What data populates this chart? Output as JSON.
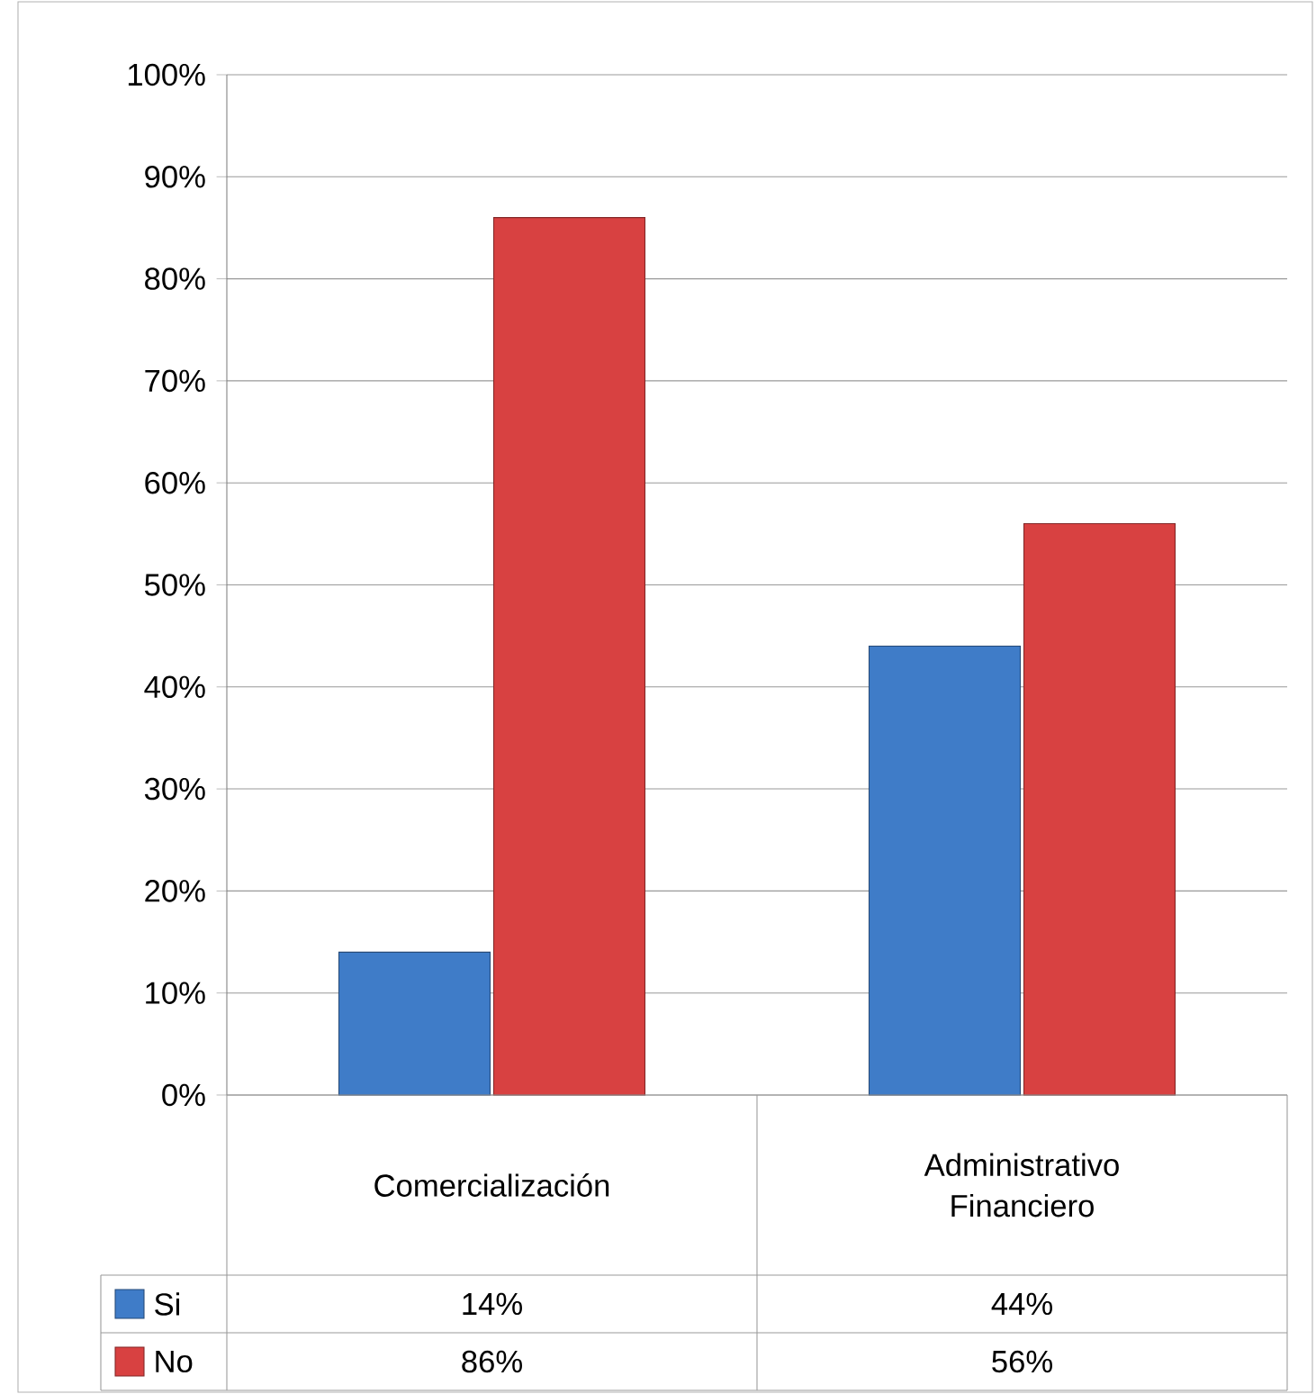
{
  "chart_data": {
    "type": "bar",
    "categories": [
      "Comercialización",
      "Administrativo Financiero"
    ],
    "series": [
      {
        "name": "Si",
        "color": "#3f7cc8",
        "values": [
          14,
          44
        ],
        "value_labels": [
          "14%",
          "44%"
        ]
      },
      {
        "name": "No",
        "color": "#d84141",
        "values": [
          86,
          56
        ],
        "value_labels": [
          "86%",
          "56%"
        ]
      }
    ],
    "ylim": [
      0,
      100
    ],
    "yticks": [
      {
        "value": 0,
        "label": "0%"
      },
      {
        "value": 10,
        "label": "10%"
      },
      {
        "value": 20,
        "label": "20%"
      },
      {
        "value": 30,
        "label": "30%"
      },
      {
        "value": 40,
        "label": "40%"
      },
      {
        "value": 50,
        "label": "50%"
      },
      {
        "value": 60,
        "label": "60%"
      },
      {
        "value": 70,
        "label": "70%"
      },
      {
        "value": 80,
        "label": "80%"
      },
      {
        "value": 90,
        "label": "90%"
      },
      {
        "value": 100,
        "label": "100%"
      }
    ],
    "grid": "y",
    "legend": "bottom"
  }
}
